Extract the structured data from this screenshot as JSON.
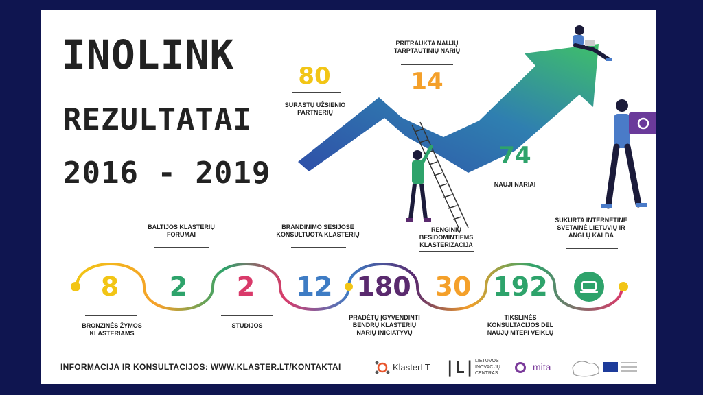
{
  "header": {
    "title_line1": "INOLINK",
    "title_line2": "REZULTATAI",
    "title_line3": "2016 - 2019"
  },
  "top_stats": [
    {
      "value": "80",
      "label": "SURASTŲ UŽSIENIO PARTNERIŲ",
      "color": "#f2c515"
    },
    {
      "value": "14",
      "label": "PRITRAUKTA NAUJŲ TARPTAUTINIŲ NARIŲ",
      "color": "#f4a02a"
    },
    {
      "value": "74",
      "label": "NAUJI NARIAI",
      "color": "#2ea36b"
    }
  ],
  "timeline_labels": {
    "forumai": "BALTIJOS KLASTERIŲ FORUMAI",
    "brandinimo": "BRANDINIMO SESIJOSE KONSULTUOTA KLASTERIŲ",
    "renginiu": "RENGINIŲ BESIDOMINTIEMS KLASTERIZACIJA",
    "svetaine": "SUKURTA INTERNETINĖ SVETAINĖ LIETUVIŲ IR ANGLŲ KALBA",
    "bronzines": "BRONZINĖS ŽYMOS KLASTERIAMS",
    "studijos": "STUDIJOS",
    "pradetu": "PRADĖTŲ ĮGYVENDINTI BENDRŲ KLASTERIŲ NARIŲ INICIATYVŲ",
    "tiksliniu": "TIKSLINĖS KONSULTACIJOS DĖL NAUJŲ MTEPI VEIKLŲ"
  },
  "timeline_values": [
    {
      "value": "8",
      "color": "#f2c515"
    },
    {
      "value": "2",
      "color": "#2ea36b"
    },
    {
      "value": "2",
      "color": "#d93a6a"
    },
    {
      "value": "12",
      "color": "#3e7cc4"
    },
    {
      "value": "180",
      "color": "#5a2a6e"
    },
    {
      "value": "30",
      "color": "#f4a02a"
    },
    {
      "value": "192",
      "color": "#2ea36b"
    }
  ],
  "footer": {
    "info": "INFORMACIJA IR KONSULTACIJOS: WWW.KLASTER.LT/KONTAKTAI",
    "logo_klaster": "KlasterLT",
    "logo_lic_line1": "LIETUVOS",
    "logo_lic_line2": "INOVACIJŲ",
    "logo_lic_line3": "CENTRAS",
    "logo_mita": "mita"
  },
  "colors": {
    "background": "#0f1550",
    "card": "#ffffff",
    "arrow_start": "#2f4fa8",
    "arrow_end": "#3fbf6a"
  },
  "icons": [
    "person-on-arrow-icon",
    "person-with-ladder-icon",
    "person-carrying-box-icon",
    "website-badge-icon"
  ]
}
